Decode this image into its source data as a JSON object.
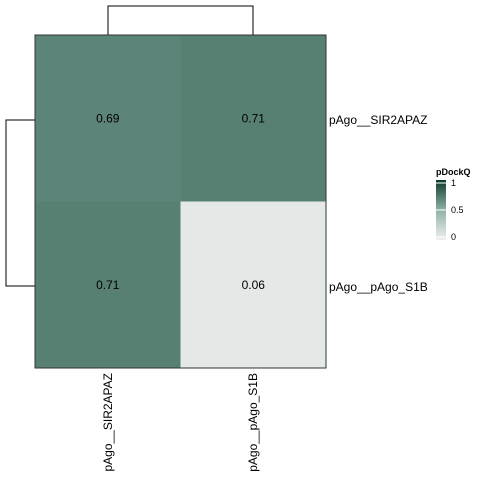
{
  "chart_data": {
    "type": "heatmap",
    "rows": [
      "pAgo__SIR2APAZ",
      "pAgo__pAgo_S1B"
    ],
    "columns": [
      "pAgo__SIR2APAZ",
      "pAgo__pAgo_S1B"
    ],
    "values": [
      [
        0.69,
        0.71
      ],
      [
        0.71,
        0.06
      ]
    ],
    "cell_labels": [
      [
        "0.69",
        "0.71"
      ],
      [
        "0.71",
        "0.06"
      ]
    ],
    "legend": {
      "title": "pDockQ",
      "ticks": [
        "1",
        "0.5",
        "0"
      ],
      "tick_values": [
        1,
        0.5,
        0
      ],
      "range": [
        0,
        1
      ],
      "colors": {
        "low": "#F0F0F0",
        "high": "#0B3A2C"
      }
    },
    "dendrograms": {
      "rows": true,
      "columns": true
    },
    "grid": false
  }
}
